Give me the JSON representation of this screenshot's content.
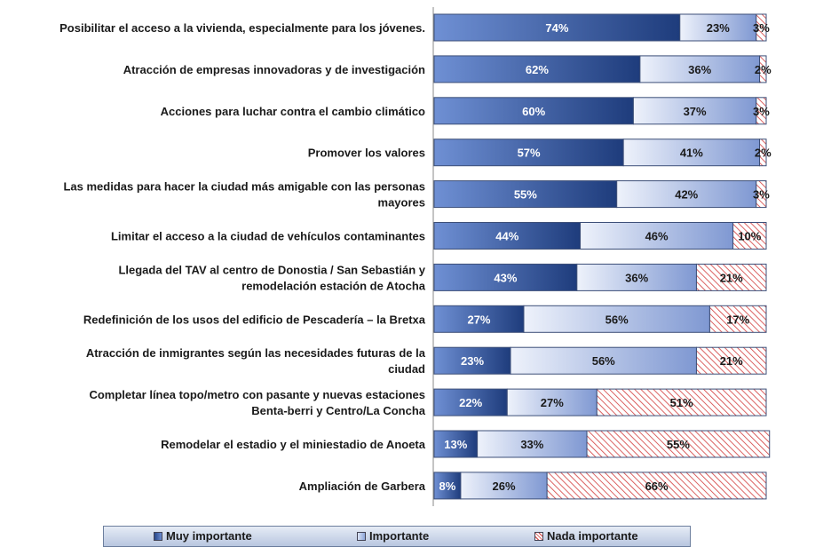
{
  "chart_data": {
    "type": "bar",
    "orientation": "horizontal",
    "stacked": true,
    "unit": "%",
    "xlim": [
      0,
      100
    ],
    "grid": false,
    "legend_position": "bottom",
    "categories": [
      [
        "Posibilitar el acceso a la vivienda, especialmente para los jóvenes."
      ],
      [
        "Atracción de empresas innovadoras y de investigación"
      ],
      [
        "Acciones para luchar contra el cambio climático"
      ],
      [
        "Promover los valores"
      ],
      [
        "Las medidas para hacer la ciudad más amigable con las personas",
        "mayores"
      ],
      [
        "Limitar el acceso a la ciudad de vehículos contaminantes"
      ],
      [
        "Llegada del TAV al centro de Donostia / San Sebastián y",
        "remodelación estación de Atocha"
      ],
      [
        "Redefinición de los usos del edificio de Pescadería – la Bretxa"
      ],
      [
        "Atracción de inmigrantes según las necesidades futuras de la",
        "ciudad"
      ],
      [
        "Completar línea topo/metro con pasante y nuevas estaciones",
        "Benta-berri y Centro/La Concha"
      ],
      [
        "Remodelar el estadio y el miniestadio de Anoeta"
      ],
      [
        "Ampliación de Garbera"
      ]
    ],
    "series": [
      {
        "name": "Muy importante",
        "color": "#2b4d8f",
        "values": [
          74,
          62,
          60,
          57,
          55,
          44,
          43,
          27,
          23,
          22,
          13,
          8
        ]
      },
      {
        "name": "Importante",
        "color": "#8ea6da",
        "values": [
          23,
          36,
          37,
          41,
          42,
          46,
          36,
          56,
          56,
          27,
          33,
          26
        ]
      },
      {
        "name": "Nada importante",
        "color": "#d23b3b",
        "values": [
          3,
          2,
          3,
          2,
          3,
          10,
          21,
          17,
          21,
          51,
          55,
          66
        ]
      }
    ]
  }
}
